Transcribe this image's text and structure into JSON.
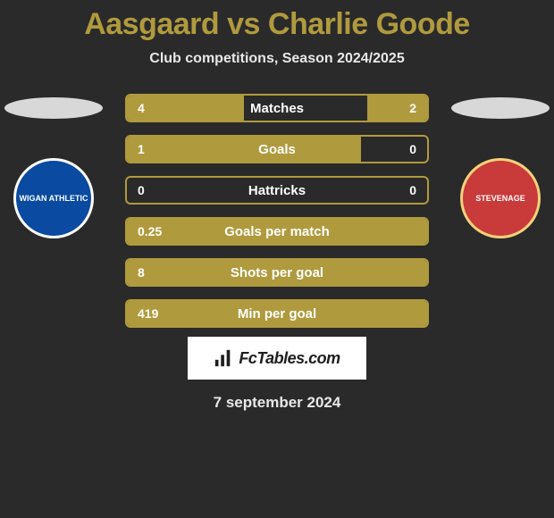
{
  "title": {
    "text": "Aasgaard vs Charlie Goode",
    "color": "#b09a3e"
  },
  "subtitle": "Club competitions, Season 2024/2025",
  "date": "7 september 2024",
  "brand": {
    "label": "FcTables.com"
  },
  "left": {
    "oval_color": "#d8d8d8",
    "crest_bg": "#0a4aa0",
    "crest_ring": "#ffffff",
    "crest_label": "WIGAN ATHLETIC"
  },
  "right": {
    "oval_color": "#d8d8d8",
    "crest_bg": "#c93a3a",
    "crest_ring": "#f2d27a",
    "crest_label": "STEVENAGE"
  },
  "row_style": {
    "border_color": "#b09a3e",
    "fill_left_color": "#b09a3e",
    "fill_right_color": "#b09a3e",
    "empty_bg": "#2a2a2a",
    "label_fontsize": 15,
    "value_fontsize": 14
  },
  "rows": [
    {
      "label": "Matches",
      "left": "4",
      "right": "2",
      "left_pct": 39,
      "right_pct": 20
    },
    {
      "label": "Goals",
      "left": "1",
      "right": "0",
      "left_pct": 78,
      "right_pct": 0
    },
    {
      "label": "Hattricks",
      "left": "0",
      "right": "0",
      "left_pct": 0,
      "right_pct": 0
    },
    {
      "label": "Goals per match",
      "left": "0.25",
      "right": "",
      "left_pct": 100,
      "right_pct": 0
    },
    {
      "label": "Shots per goal",
      "left": "8",
      "right": "",
      "left_pct": 100,
      "right_pct": 0
    },
    {
      "label": "Min per goal",
      "left": "419",
      "right": "",
      "left_pct": 100,
      "right_pct": 0
    }
  ]
}
